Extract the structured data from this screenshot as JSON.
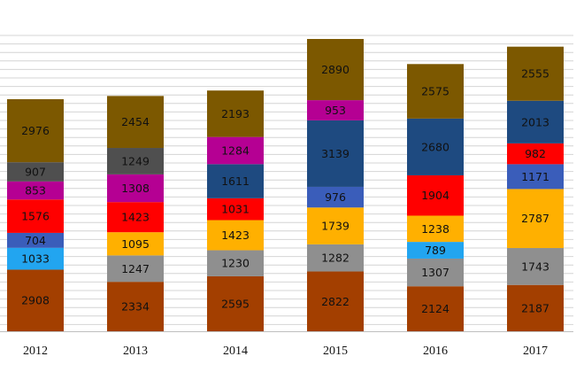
{
  "chart_data": {
    "type": "bar",
    "stacked": true,
    "categories": [
      "2012",
      "2013",
      "2014",
      "2015",
      "2016",
      "2017"
    ],
    "grid": true,
    "legend": "none",
    "stacks": [
      {
        "category": "2012",
        "segments": [
          {
            "value": 2908,
            "color": "#a33f00"
          },
          {
            "value": 1033,
            "color": "#22a5f0"
          },
          {
            "value": 704,
            "color": "#3a5dba"
          },
          {
            "value": 1576,
            "color": "#ff0000"
          },
          {
            "value": 853,
            "color": "#b50093"
          },
          {
            "value": 907,
            "color": "#4f4f4f"
          },
          {
            "value": 2976,
            "color": "#7c5800"
          }
        ]
      },
      {
        "category": "2013",
        "segments": [
          {
            "value": 2334,
            "color": "#a33f00"
          },
          {
            "value": 1247,
            "color": "#8f8f8f"
          },
          {
            "value": 1095,
            "color": "#ffb000"
          },
          {
            "value": 1423,
            "color": "#ff0000"
          },
          {
            "value": 1308,
            "color": "#b50093"
          },
          {
            "value": 1249,
            "color": "#4f4f4f"
          },
          {
            "value": 2454,
            "color": "#7c5800"
          }
        ]
      },
      {
        "category": "2014",
        "segments": [
          {
            "value": 2595,
            "color": "#a33f00"
          },
          {
            "value": 1230,
            "color": "#8f8f8f"
          },
          {
            "value": 1423,
            "color": "#ffb000"
          },
          {
            "value": 1031,
            "color": "#ff0000"
          },
          {
            "value": 1611,
            "color": "#1e4a80"
          },
          {
            "value": 1284,
            "color": "#b50093"
          },
          {
            "value": 2193,
            "color": "#7c5800"
          }
        ]
      },
      {
        "category": "2015",
        "segments": [
          {
            "value": 2822,
            "color": "#a33f00"
          },
          {
            "value": 1282,
            "color": "#8f8f8f"
          },
          {
            "value": 1739,
            "color": "#ffb000"
          },
          {
            "value": 976,
            "color": "#3a5dba"
          },
          {
            "value": 3139,
            "color": "#1e4a80"
          },
          {
            "value": 953,
            "color": "#b50093"
          },
          {
            "value": 2890,
            "color": "#7c5800"
          }
        ]
      },
      {
        "category": "2016",
        "segments": [
          {
            "value": 2124,
            "color": "#a33f00"
          },
          {
            "value": 1307,
            "color": "#8f8f8f"
          },
          {
            "value": 789,
            "color": "#22a5f0"
          },
          {
            "value": 1238,
            "color": "#ffb000"
          },
          {
            "value": 1904,
            "color": "#ff0000"
          },
          {
            "value": 2680,
            "color": "#1e4a80"
          },
          {
            "value": 2575,
            "color": "#7c5800"
          }
        ]
      },
      {
        "category": "2017",
        "segments": [
          {
            "value": 2187,
            "color": "#a33f00"
          },
          {
            "value": 1743,
            "color": "#8f8f8f"
          },
          {
            "value": 2787,
            "color": "#ffb000"
          },
          {
            "value": 1171,
            "color": "#3a5dba"
          },
          {
            "value": 982,
            "color": "#ff0000"
          },
          {
            "value": 2013,
            "color": "#1e4a80"
          },
          {
            "value": 2555,
            "color": "#7c5800"
          }
        ]
      }
    ]
  }
}
